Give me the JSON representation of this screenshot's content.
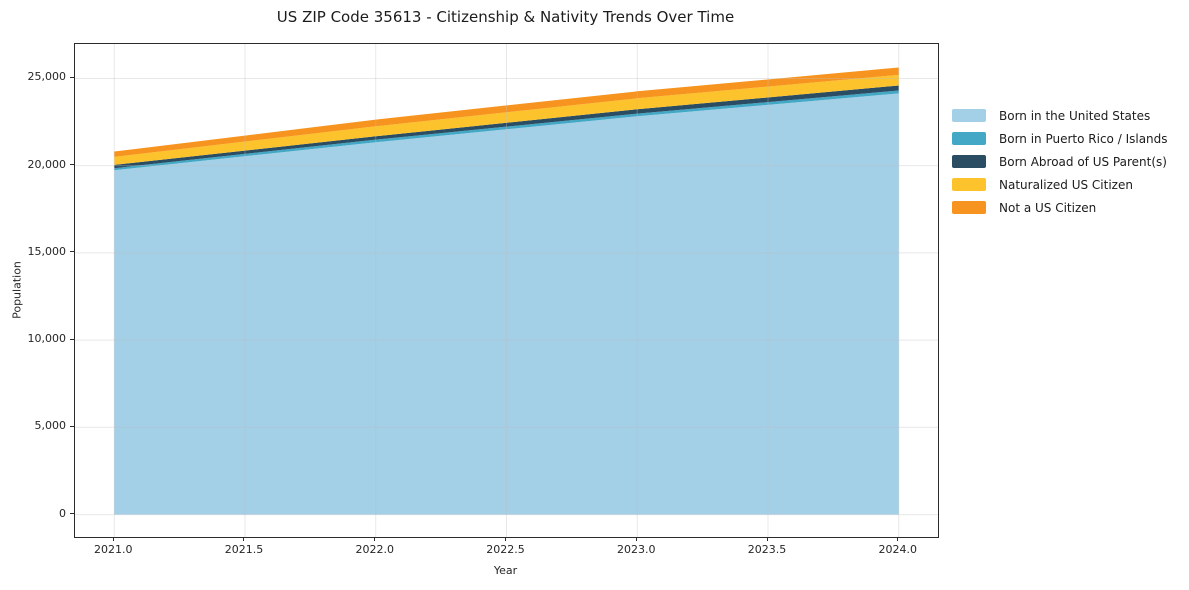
{
  "figure": {
    "title": "US ZIP Code 35613 - Citizenship & Nativity Trends Over Time",
    "xlabel": "Year",
    "ylabel": "Population"
  },
  "chart_data": {
    "type": "area",
    "stacked": true,
    "title": "US ZIP Code 35613 - Citizenship & Nativity Trends Over Time",
    "xlabel": "Year",
    "ylabel": "Population",
    "grid": true,
    "legend_position": "outside-right",
    "x": [
      2021,
      2022,
      2023,
      2024
    ],
    "series": [
      {
        "name": "Born in the United States",
        "color": "#a3cfe7",
        "values": [
          19740,
          21340,
          22830,
          24140
        ]
      },
      {
        "name": "Born in Puerto Rico / Islands",
        "color": "#42a8c5",
        "values": [
          115,
          155,
          155,
          170
        ]
      },
      {
        "name": "Born Abroad of US Parent(s)",
        "color": "#2b4d63",
        "values": [
          190,
          190,
          245,
          285
        ]
      },
      {
        "name": "Naturalized US Citizen",
        "color": "#fdc32c",
        "values": [
          455,
          570,
          630,
          610
        ]
      },
      {
        "name": "Not a US Citizen",
        "color": "#f7941f",
        "values": [
          310,
          385,
          400,
          420
        ]
      }
    ],
    "stack_totals": [
      20810,
      22640,
      24260,
      25625
    ],
    "xlim": [
      2020.85,
      2024.15
    ],
    "ylim": [
      -1284,
      26974
    ],
    "xticks": {
      "values": [
        2021.0,
        2021.5,
        2022.0,
        2022.5,
        2023.0,
        2023.5,
        2024.0
      ],
      "labels": [
        "2021.0",
        "2021.5",
        "2022.0",
        "2022.5",
        "2023.0",
        "2023.5",
        "2024.0"
      ]
    },
    "yticks": {
      "values": [
        0,
        5000,
        10000,
        15000,
        20000,
        25000
      ],
      "labels": [
        "0",
        "5,000",
        "10,000",
        "15,000",
        "20,000",
        "25,000"
      ]
    }
  },
  "colors": {
    "spine": "#2b2b2b",
    "tick_text": "#262626",
    "title_text": "#1c1c1c",
    "grid": "rgba(190,190,190,0.35)",
    "background": "#ffffff"
  }
}
